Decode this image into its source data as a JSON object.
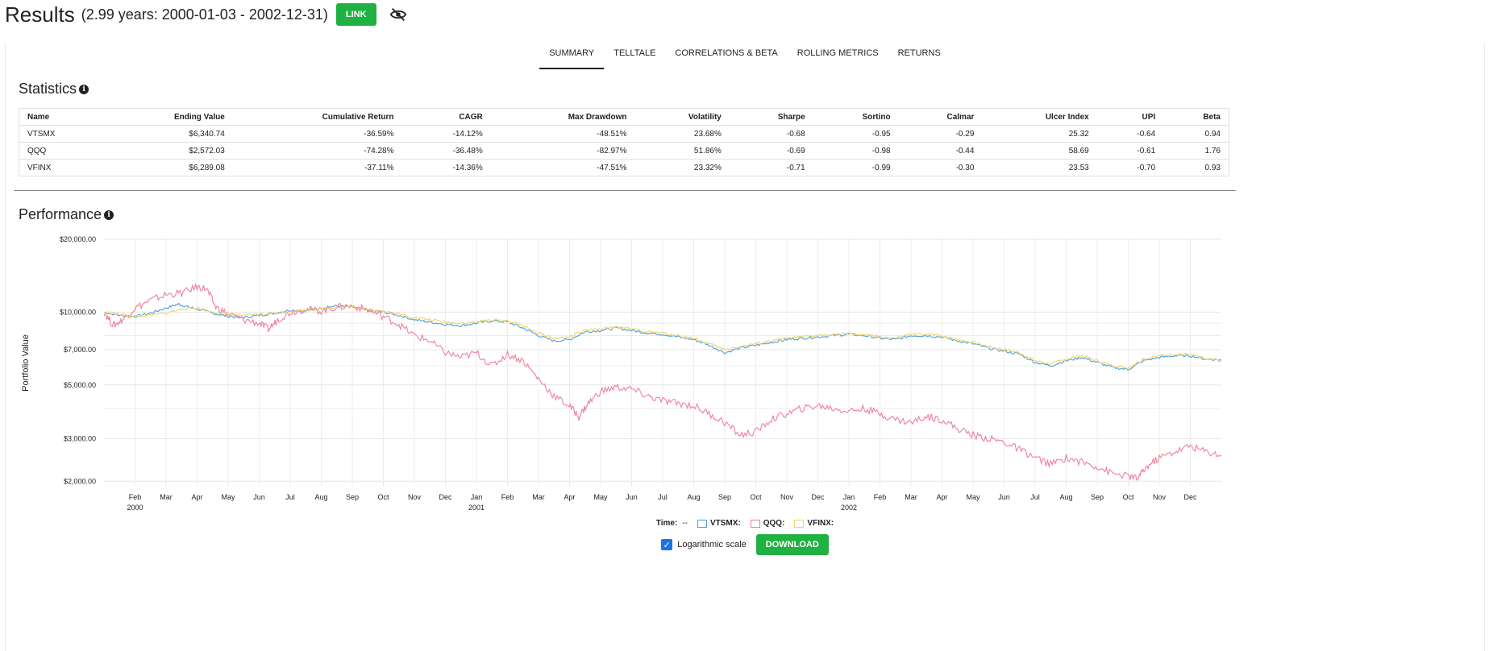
{
  "header": {
    "title": "Results",
    "subtitle": "(2.99 years: 2000-01-03 - 2002-12-31)",
    "link_label": "LINK"
  },
  "tabs": [
    {
      "label": "SUMMARY",
      "active": true
    },
    {
      "label": "TELLTALE",
      "active": false
    },
    {
      "label": "CORRELATIONS & BETA",
      "active": false
    },
    {
      "label": "ROLLING METRICS",
      "active": false
    },
    {
      "label": "RETURNS",
      "active": false
    }
  ],
  "statistics": {
    "title": "Statistics",
    "columns": [
      "Name",
      "Ending Value",
      "Cumulative Return",
      "CAGR",
      "Max Drawdown",
      "Volatility",
      "Sharpe",
      "Sortino",
      "Calmar",
      "Ulcer Index",
      "UPI",
      "Beta"
    ],
    "rows": [
      [
        "VTSMX",
        "$6,340.74",
        "-36.59%",
        "-14.12%",
        "-48.51%",
        "23.68%",
        "-0.68",
        "-0.95",
        "-0.29",
        "25.32",
        "-0.64",
        "0.94"
      ],
      [
        "QQQ",
        "$2,572.03",
        "-74.28%",
        "-36.48%",
        "-82.97%",
        "51.86%",
        "-0.69",
        "-0.98",
        "-0.44",
        "58.69",
        "-0.61",
        "1.76"
      ],
      [
        "VFINX",
        "$6,289.08",
        "-37.11%",
        "-14.36%",
        "-47.51%",
        "23.32%",
        "-0.71",
        "-0.99",
        "-0.30",
        "23.53",
        "-0.70",
        "0.93"
      ]
    ]
  },
  "performance": {
    "title": "Performance"
  },
  "chart_data": {
    "type": "line",
    "scale": "log",
    "ylabel": "Portfolio Value",
    "xlabel": "",
    "ylim": [
      1900,
      20000
    ],
    "y_ticks": [
      {
        "value": 20000,
        "label": "$20,000.00"
      },
      {
        "value": 10000,
        "label": "$10,000.00"
      },
      {
        "value": 7000,
        "label": "$7,000.00"
      },
      {
        "value": 5000,
        "label": "$5,000.00"
      },
      {
        "value": 3000,
        "label": "$3,000.00"
      },
      {
        "value": 2000,
        "label": "$2,000.00"
      }
    ],
    "y_minor_ticks": [
      9000,
      8000,
      6000,
      4000
    ],
    "x_ticks": [
      {
        "month": 1,
        "label": "Feb",
        "year_label": "2000"
      },
      {
        "month": 2,
        "label": "Mar"
      },
      {
        "month": 3,
        "label": "Apr"
      },
      {
        "month": 4,
        "label": "May"
      },
      {
        "month": 5,
        "label": "Jun"
      },
      {
        "month": 6,
        "label": "Jul"
      },
      {
        "month": 7,
        "label": "Aug"
      },
      {
        "month": 8,
        "label": "Sep"
      },
      {
        "month": 9,
        "label": "Oct"
      },
      {
        "month": 10,
        "label": "Nov"
      },
      {
        "month": 11,
        "label": "Dec"
      },
      {
        "month": 12,
        "label": "Jan",
        "year_label": "2001"
      },
      {
        "month": 13,
        "label": "Feb"
      },
      {
        "month": 14,
        "label": "Mar"
      },
      {
        "month": 15,
        "label": "Apr"
      },
      {
        "month": 16,
        "label": "May"
      },
      {
        "month": 17,
        "label": "Jun"
      },
      {
        "month": 18,
        "label": "Jul"
      },
      {
        "month": 19,
        "label": "Aug"
      },
      {
        "month": 20,
        "label": "Sep"
      },
      {
        "month": 21,
        "label": "Oct"
      },
      {
        "month": 22,
        "label": "Nov"
      },
      {
        "month": 23,
        "label": "Dec"
      },
      {
        "month": 24,
        "label": "Jan",
        "year_label": "2002"
      },
      {
        "month": 25,
        "label": "Feb"
      },
      {
        "month": 26,
        "label": "Mar"
      },
      {
        "month": 27,
        "label": "Apr"
      },
      {
        "month": 28,
        "label": "May"
      },
      {
        "month": 29,
        "label": "Jun"
      },
      {
        "month": 30,
        "label": "Jul"
      },
      {
        "month": 31,
        "label": "Aug"
      },
      {
        "month": 32,
        "label": "Sep"
      },
      {
        "month": 33,
        "label": "Oct"
      },
      {
        "month": 34,
        "label": "Nov"
      },
      {
        "month": 35,
        "label": "Dec"
      }
    ],
    "x_range_months": [
      0,
      36
    ],
    "series": [
      {
        "name": "VTSMX",
        "color": "#4ea1d3",
        "points": [
          [
            0,
            10000
          ],
          [
            0.5,
            9700
          ],
          [
            1,
            9600
          ],
          [
            1.5,
            9900
          ],
          [
            2,
            10400
          ],
          [
            2.4,
            10800
          ],
          [
            2.7,
            10500
          ],
          [
            3,
            10300
          ],
          [
            3.5,
            9900
          ],
          [
            4,
            9600
          ],
          [
            4.5,
            9500
          ],
          [
            5,
            9700
          ],
          [
            5.5,
            9900
          ],
          [
            6,
            10200
          ],
          [
            6.5,
            10100
          ],
          [
            7,
            10400
          ],
          [
            7.5,
            10600
          ],
          [
            8,
            10500
          ],
          [
            8.5,
            10200
          ],
          [
            9,
            10000
          ],
          [
            9.5,
            9700
          ],
          [
            10,
            9300
          ],
          [
            10.5,
            9100
          ],
          [
            11,
            8900
          ],
          [
            11.5,
            8800
          ],
          [
            12,
            9000
          ],
          [
            12.5,
            9200
          ],
          [
            13,
            9100
          ],
          [
            13.5,
            8600
          ],
          [
            14,
            8000
          ],
          [
            14.5,
            7600
          ],
          [
            15,
            7700
          ],
          [
            15.5,
            8300
          ],
          [
            16,
            8400
          ],
          [
            16.5,
            8600
          ],
          [
            17,
            8400
          ],
          [
            17.5,
            8200
          ],
          [
            18,
            8100
          ],
          [
            18.5,
            7900
          ],
          [
            19,
            7700
          ],
          [
            19.5,
            7300
          ],
          [
            20,
            6800
          ],
          [
            20.5,
            7100
          ],
          [
            21,
            7300
          ],
          [
            21.5,
            7500
          ],
          [
            22,
            7700
          ],
          [
            22.5,
            7800
          ],
          [
            23,
            7900
          ],
          [
            23.5,
            8000
          ],
          [
            24,
            8100
          ],
          [
            24.5,
            8000
          ],
          [
            25,
            7800
          ],
          [
            25.5,
            7700
          ],
          [
            26,
            8000
          ],
          [
            26.5,
            8000
          ],
          [
            27,
            7900
          ],
          [
            27.5,
            7600
          ],
          [
            28,
            7400
          ],
          [
            28.5,
            7100
          ],
          [
            29,
            6900
          ],
          [
            29.5,
            6700
          ],
          [
            30,
            6200
          ],
          [
            30.5,
            6000
          ],
          [
            31,
            6300
          ],
          [
            31.5,
            6500
          ],
          [
            32,
            6200
          ],
          [
            32.5,
            5900
          ],
          [
            33,
            5800
          ],
          [
            33.5,
            6300
          ],
          [
            34,
            6500
          ],
          [
            34.5,
            6600
          ],
          [
            35,
            6600
          ],
          [
            35.5,
            6400
          ],
          [
            36,
            6340
          ]
        ]
      },
      {
        "name": "QQQ",
        "color": "#f07f9a",
        "points": [
          [
            0,
            10000
          ],
          [
            0.3,
            8800
          ],
          [
            0.6,
            9300
          ],
          [
            1,
            10400
          ],
          [
            1.5,
            11200
          ],
          [
            2,
            11800
          ],
          [
            2.5,
            12000
          ],
          [
            3,
            12700
          ],
          [
            3.3,
            12500
          ],
          [
            3.6,
            10500
          ],
          [
            4,
            9800
          ],
          [
            4.5,
            9300
          ],
          [
            5,
            9000
          ],
          [
            5.3,
            8500
          ],
          [
            5.6,
            9300
          ],
          [
            6,
            10000
          ],
          [
            6.5,
            10300
          ],
          [
            7,
            10100
          ],
          [
            7.5,
            10500
          ],
          [
            8,
            10600
          ],
          [
            8.5,
            10200
          ],
          [
            9,
            9600
          ],
          [
            9.5,
            8900
          ],
          [
            10,
            8000
          ],
          [
            10.5,
            7600
          ],
          [
            11,
            6800
          ],
          [
            11.5,
            6500
          ],
          [
            12,
            6800
          ],
          [
            12.5,
            6000
          ],
          [
            13,
            6700
          ],
          [
            13.5,
            6300
          ],
          [
            14,
            5300
          ],
          [
            14.5,
            4500
          ],
          [
            15,
            4100
          ],
          [
            15.3,
            3700
          ],
          [
            15.6,
            4200
          ],
          [
            16,
            4700
          ],
          [
            16.5,
            4900
          ],
          [
            17,
            4800
          ],
          [
            17.5,
            4500
          ],
          [
            18,
            4300
          ],
          [
            18.5,
            4200
          ],
          [
            19,
            4100
          ],
          [
            19.5,
            3800
          ],
          [
            20,
            3500
          ],
          [
            20.5,
            3100
          ],
          [
            21,
            3200
          ],
          [
            21.5,
            3600
          ],
          [
            22,
            3800
          ],
          [
            22.5,
            4000
          ],
          [
            23,
            4100
          ],
          [
            23.5,
            4000
          ],
          [
            24,
            3900
          ],
          [
            24.5,
            4000
          ],
          [
            25,
            3800
          ],
          [
            25.5,
            3600
          ],
          [
            26,
            3500
          ],
          [
            26.5,
            3700
          ],
          [
            27,
            3600
          ],
          [
            27.5,
            3300
          ],
          [
            28,
            3100
          ],
          [
            28.5,
            3000
          ],
          [
            29,
            2900
          ],
          [
            29.5,
            2700
          ],
          [
            30,
            2500
          ],
          [
            30.5,
            2350
          ],
          [
            31,
            2500
          ],
          [
            31.5,
            2400
          ],
          [
            32,
            2300
          ],
          [
            32.5,
            2150
          ],
          [
            33,
            2100
          ],
          [
            33.3,
            2050
          ],
          [
            33.6,
            2300
          ],
          [
            34,
            2500
          ],
          [
            34.5,
            2650
          ],
          [
            35,
            2800
          ],
          [
            35.5,
            2650
          ],
          [
            36,
            2570
          ]
        ]
      },
      {
        "name": "VFINX",
        "color": "#f3d36a",
        "points": [
          [
            0,
            10000
          ],
          [
            0.5,
            9800
          ],
          [
            1,
            9600
          ],
          [
            1.5,
            9700
          ],
          [
            2,
            9900
          ],
          [
            2.5,
            10300
          ],
          [
            3,
            10400
          ],
          [
            3.5,
            10000
          ],
          [
            4,
            9800
          ],
          [
            4.5,
            9700
          ],
          [
            5,
            9800
          ],
          [
            5.5,
            9900
          ],
          [
            6,
            10100
          ],
          [
            6.5,
            10200
          ],
          [
            7,
            10300
          ],
          [
            7.5,
            10500
          ],
          [
            8,
            10500
          ],
          [
            8.5,
            10300
          ],
          [
            9,
            10100
          ],
          [
            9.5,
            9800
          ],
          [
            10,
            9500
          ],
          [
            10.5,
            9300
          ],
          [
            11,
            9100
          ],
          [
            11.5,
            9000
          ],
          [
            12,
            9100
          ],
          [
            12.5,
            9300
          ],
          [
            13,
            9200
          ],
          [
            13.5,
            8800
          ],
          [
            14,
            8200
          ],
          [
            14.5,
            7800
          ],
          [
            15,
            7900
          ],
          [
            15.5,
            8400
          ],
          [
            16,
            8500
          ],
          [
            16.5,
            8700
          ],
          [
            17,
            8500
          ],
          [
            17.5,
            8300
          ],
          [
            18,
            8200
          ],
          [
            18.5,
            8000
          ],
          [
            19,
            7800
          ],
          [
            19.5,
            7400
          ],
          [
            20,
            7000
          ],
          [
            20.5,
            7200
          ],
          [
            21,
            7400
          ],
          [
            21.5,
            7600
          ],
          [
            22,
            7800
          ],
          [
            22.5,
            7900
          ],
          [
            23,
            8000
          ],
          [
            23.5,
            8100
          ],
          [
            24,
            8150
          ],
          [
            24.5,
            8050
          ],
          [
            25,
            7900
          ],
          [
            25.5,
            7800
          ],
          [
            26,
            8100
          ],
          [
            26.5,
            8100
          ],
          [
            27,
            8000
          ],
          [
            27.5,
            7700
          ],
          [
            28,
            7500
          ],
          [
            28.5,
            7200
          ],
          [
            29,
            7000
          ],
          [
            29.5,
            6800
          ],
          [
            30,
            6300
          ],
          [
            30.5,
            6100
          ],
          [
            31,
            6400
          ],
          [
            31.5,
            6600
          ],
          [
            32,
            6300
          ],
          [
            32.5,
            6000
          ],
          [
            33,
            5900
          ],
          [
            33.5,
            6400
          ],
          [
            34,
            6600
          ],
          [
            34.5,
            6700
          ],
          [
            35,
            6700
          ],
          [
            35.5,
            6400
          ],
          [
            36,
            6289
          ]
        ]
      }
    ]
  },
  "legend": {
    "time_label": "Time:",
    "time_value": "--",
    "items": [
      {
        "name": "VTSMX:",
        "color": "#4ea1d3"
      },
      {
        "name": "QQQ:",
        "color": "#f07f9a"
      },
      {
        "name": "VFINX:",
        "color": "#f3d36a"
      }
    ]
  },
  "controls": {
    "log_scale_label": "Logarithmic scale",
    "log_scale_checked": true,
    "download_label": "DOWNLOAD"
  }
}
